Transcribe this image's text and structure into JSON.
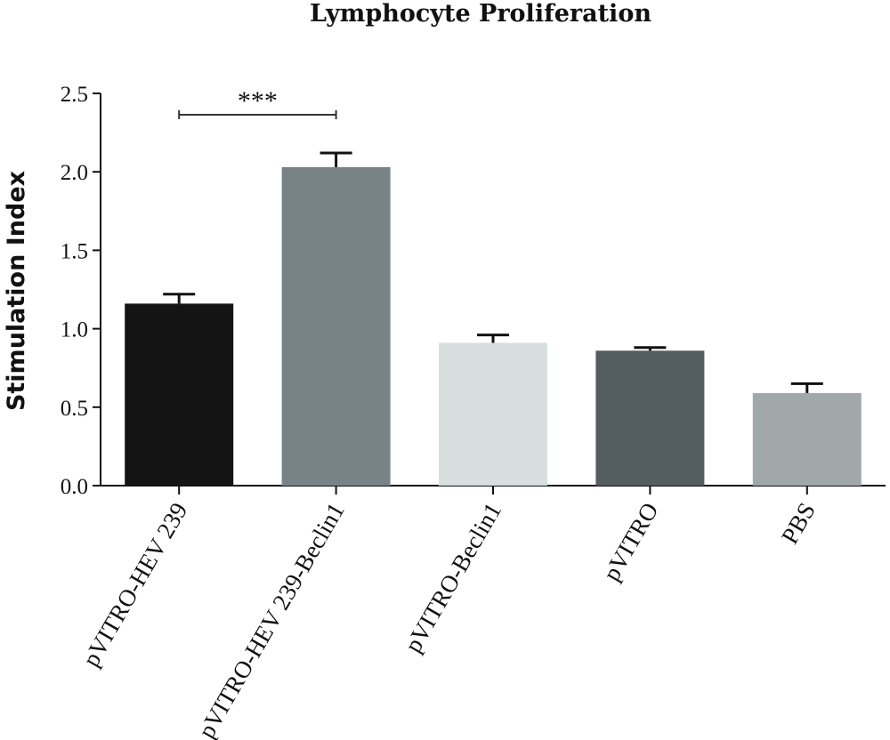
{
  "chart_data": {
    "type": "bar",
    "title": "Lymphocyte Proliferation",
    "xlabel": "",
    "ylabel": "Stimulation Index",
    "ylim": [
      0,
      2.5
    ],
    "yticks": [
      "0.0",
      "0.5",
      "1.0",
      "1.5",
      "2.0",
      "2.5"
    ],
    "ytick_values": [
      0,
      0.5,
      1.0,
      1.5,
      2.0,
      2.5
    ],
    "categories": [
      "pVITRO-HEV 239",
      "pVITRO-HEV 239-Beclin1",
      "pVITRO-Beclin1",
      "pVITRO",
      "PBS"
    ],
    "values": [
      1.16,
      2.03,
      0.91,
      0.86,
      0.59
    ],
    "errors": [
      0.06,
      0.09,
      0.05,
      0.02,
      0.06
    ],
    "colors": [
      "#141414",
      "#778386",
      "#d8dede",
      "#535c5f",
      "#a1a8a9"
    ],
    "significance": {
      "from": 0,
      "to": 1,
      "label": "***"
    },
    "grid": false,
    "legend": "none"
  }
}
